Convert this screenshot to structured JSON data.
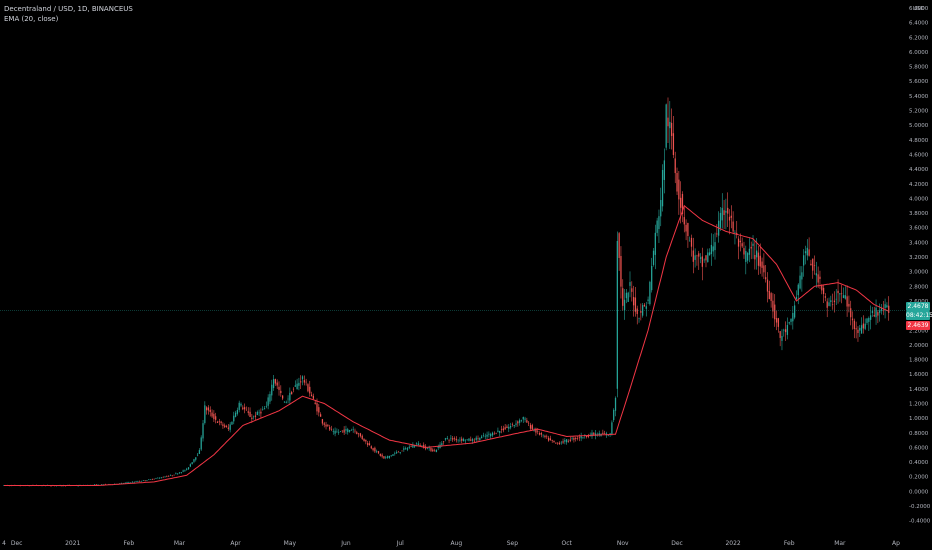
{
  "legend": {
    "symbol": "Decentraland / USD, 1D, BINANCEUS",
    "indicator": "EMA (20, close)"
  },
  "price_tags": {
    "last": "2.4678",
    "countdown": "08:42:15",
    "ema": "2.4639"
  },
  "colors": {
    "background": "#000000",
    "up": "#26a69a",
    "down": "#ef5350",
    "ema": "#f23645",
    "axis_text": "#b2b5be"
  },
  "chart_data": {
    "type": "candlestick",
    "y_unit": "USD",
    "ylim": [
      -0.5,
      6.6
    ],
    "x_range": [
      "2020-11-24",
      "2022-04-06"
    ],
    "y_ticks": [
      "-0.4000",
      "-0.2000",
      "0.0000",
      "0.2000",
      "0.4000",
      "0.6000",
      "0.8000",
      "1.0000",
      "1.2000",
      "1.4000",
      "1.6000",
      "1.8000",
      "2.0000",
      "2.2000",
      "2.4000",
      "2.6000",
      "2.8000",
      "3.0000",
      "3.2000",
      "3.4000",
      "3.6000",
      "3.8000",
      "4.0000",
      "4.2000",
      "4.4000",
      "4.6000",
      "4.8000",
      "5.0000",
      "5.2000",
      "5.4000",
      "5.6000",
      "5.8000",
      "6.0000",
      "6.2000",
      "6.4000",
      "6.6000"
    ],
    "y_unit_label": "USD",
    "x_ticks": [
      {
        "label": "4",
        "date": "2020-11-24"
      },
      {
        "label": "Dec",
        "date": "2020-12-01"
      },
      {
        "label": "2021",
        "date": "2021-01-01"
      },
      {
        "label": "Feb",
        "date": "2021-02-01"
      },
      {
        "label": "Mar",
        "date": "2021-03-01"
      },
      {
        "label": "Apr",
        "date": "2021-04-01"
      },
      {
        "label": "May",
        "date": "2021-05-01"
      },
      {
        "label": "Jun",
        "date": "2021-06-01"
      },
      {
        "label": "Jul",
        "date": "2021-07-01"
      },
      {
        "label": "Aug",
        "date": "2021-08-01"
      },
      {
        "label": "Sep",
        "date": "2021-09-01"
      },
      {
        "label": "Oct",
        "date": "2021-10-01"
      },
      {
        "label": "Nov",
        "date": "2021-11-01"
      },
      {
        "label": "Dec",
        "date": "2021-12-01"
      },
      {
        "label": "2022",
        "date": "2022-01-01"
      },
      {
        "label": "Feb",
        "date": "2022-02-01"
      },
      {
        "label": "Mar",
        "date": "2022-03-01"
      },
      {
        "label": "Ap",
        "date": "2022-04-01"
      }
    ],
    "price_anchors": [
      [
        "2020-11-24",
        0.08
      ],
      [
        "2020-12-15",
        0.08
      ],
      [
        "2021-01-05",
        0.08
      ],
      [
        "2021-01-25",
        0.1
      ],
      [
        "2021-02-10",
        0.15
      ],
      [
        "2021-02-25",
        0.22
      ],
      [
        "2021-03-05",
        0.3
      ],
      [
        "2021-03-12",
        0.55
      ],
      [
        "2021-03-15",
        1.15
      ],
      [
        "2021-03-22",
        0.95
      ],
      [
        "2021-03-28",
        0.85
      ],
      [
        "2021-04-03",
        1.2
      ],
      [
        "2021-04-10",
        1.0
      ],
      [
        "2021-04-18",
        1.15
      ],
      [
        "2021-04-22",
        1.55
      ],
      [
        "2021-04-28",
        1.2
      ],
      [
        "2021-05-03",
        1.4
      ],
      [
        "2021-05-08",
        1.55
      ],
      [
        "2021-05-13",
        1.3
      ],
      [
        "2021-05-19",
        0.95
      ],
      [
        "2021-05-25",
        0.8
      ],
      [
        "2021-06-05",
        0.85
      ],
      [
        "2021-06-15",
        0.6
      ],
      [
        "2021-06-22",
        0.45
      ],
      [
        "2021-07-01",
        0.55
      ],
      [
        "2021-07-10",
        0.65
      ],
      [
        "2021-07-20",
        0.55
      ],
      [
        "2021-07-26",
        0.72
      ],
      [
        "2021-08-10",
        0.7
      ],
      [
        "2021-08-20",
        0.78
      ],
      [
        "2021-09-01",
        0.9
      ],
      [
        "2021-09-07",
        1.0
      ],
      [
        "2021-09-12",
        0.85
      ],
      [
        "2021-09-20",
        0.72
      ],
      [
        "2021-09-25",
        0.65
      ],
      [
        "2021-10-05",
        0.72
      ],
      [
        "2021-10-15",
        0.78
      ],
      [
        "2021-10-25",
        0.78
      ],
      [
        "2021-10-28",
        1.3
      ],
      [
        "2021-10-29",
        3.5
      ],
      [
        "2021-11-01",
        2.5
      ],
      [
        "2021-11-05",
        2.8
      ],
      [
        "2021-11-09",
        2.4
      ],
      [
        "2021-11-15",
        2.6
      ],
      [
        "2021-11-18",
        3.3
      ],
      [
        "2021-11-22",
        4.0
      ],
      [
        "2021-11-24",
        4.6
      ],
      [
        "2021-11-25",
        5.2
      ],
      [
        "2021-11-28",
        4.8
      ],
      [
        "2021-12-01",
        4.2
      ],
      [
        "2021-12-05",
        3.7
      ],
      [
        "2021-12-10",
        3.2
      ],
      [
        "2021-12-15",
        3.1
      ],
      [
        "2021-12-20",
        3.3
      ],
      [
        "2021-12-25",
        3.7
      ],
      [
        "2021-12-28",
        3.9
      ],
      [
        "2022-01-02",
        3.5
      ],
      [
        "2022-01-07",
        3.2
      ],
      [
        "2022-01-12",
        3.3
      ],
      [
        "2022-01-18",
        3.0
      ],
      [
        "2022-01-22",
        2.6
      ],
      [
        "2022-01-27",
        2.1
      ],
      [
        "2022-02-02",
        2.3
      ],
      [
        "2022-02-06",
        2.8
      ],
      [
        "2022-02-10",
        3.3
      ],
      [
        "2022-02-15",
        3.0
      ],
      [
        "2022-02-18",
        2.9
      ],
      [
        "2022-02-22",
        2.5
      ],
      [
        "2022-02-28",
        2.7
      ],
      [
        "2022-03-04",
        2.65
      ],
      [
        "2022-03-08",
        2.3
      ],
      [
        "2022-03-12",
        2.2
      ],
      [
        "2022-03-18",
        2.4
      ],
      [
        "2022-03-24",
        2.5
      ],
      [
        "2022-03-28",
        2.47
      ]
    ],
    "ema_anchors": [
      [
        "2020-11-24",
        0.08
      ],
      [
        "2021-01-15",
        0.08
      ],
      [
        "2021-02-15",
        0.13
      ],
      [
        "2021-03-05",
        0.22
      ],
      [
        "2021-03-20",
        0.5
      ],
      [
        "2021-04-05",
        0.9
      ],
      [
        "2021-04-25",
        1.1
      ],
      [
        "2021-05-08",
        1.3
      ],
      [
        "2021-05-20",
        1.2
      ],
      [
        "2021-06-05",
        0.95
      ],
      [
        "2021-06-25",
        0.7
      ],
      [
        "2021-07-15",
        0.6
      ],
      [
        "2021-08-10",
        0.66
      ],
      [
        "2021-09-01",
        0.78
      ],
      [
        "2021-09-15",
        0.85
      ],
      [
        "2021-10-01",
        0.75
      ],
      [
        "2021-10-28",
        0.78
      ],
      [
        "2021-11-05",
        1.4
      ],
      [
        "2021-11-15",
        2.2
      ],
      [
        "2021-11-25",
        3.2
      ],
      [
        "2021-12-05",
        3.9
      ],
      [
        "2021-12-15",
        3.7
      ],
      [
        "2021-12-28",
        3.55
      ],
      [
        "2022-01-12",
        3.45
      ],
      [
        "2022-01-25",
        3.1
      ],
      [
        "2022-02-05",
        2.6
      ],
      [
        "2022-02-15",
        2.8
      ],
      [
        "2022-02-28",
        2.85
      ],
      [
        "2022-03-10",
        2.75
      ],
      [
        "2022-03-20",
        2.55
      ],
      [
        "2022-03-28",
        2.46
      ]
    ],
    "last_price": 2.4678,
    "ema_value": 2.4639
  }
}
